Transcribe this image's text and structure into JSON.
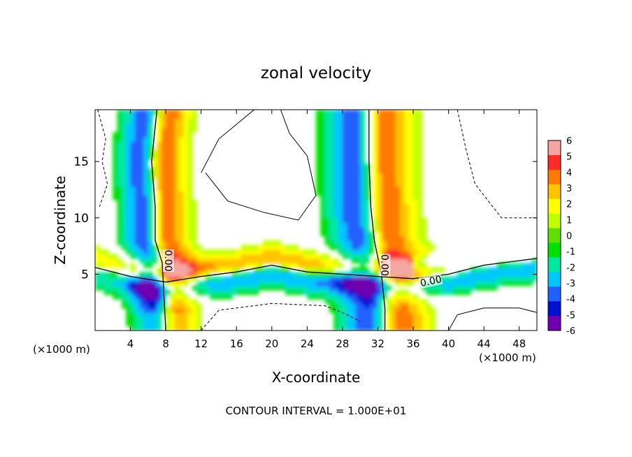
{
  "chart_data": {
    "type": "heatmap",
    "title": "zonal velocity",
    "xlabel": "X-coordinate",
    "ylabel": "Z-coordinate",
    "x_unit_left": "(×1000 m)",
    "x_unit_right": "(×1000 m)",
    "xlim": [
      0,
      50
    ],
    "ylim": [
      0,
      19.6
    ],
    "x_ticks": [
      4,
      8,
      12,
      16,
      20,
      24,
      28,
      32,
      36,
      40,
      44,
      48
    ],
    "y_ticks": [
      5,
      10,
      15
    ],
    "footer": "CONTOUR INTERVAL = 1.000E+01",
    "colorbar": {
      "ticks": [
        6,
        5,
        4,
        3,
        2,
        1,
        0,
        -1,
        -2,
        -3,
        -4,
        -5,
        -6
      ],
      "colors": [
        "#f4a7a0",
        "#ff2a2a",
        "#ff7a00",
        "#ffc400",
        "#ffff00",
        "#bfff00",
        "#60e000",
        "#00e000",
        "#00e8a0",
        "#00c8ff",
        "#2060ff",
        "#0010d0",
        "#7000b0"
      ]
    },
    "contour_labels": [
      {
        "text": "0.00",
        "x": 8.3,
        "z": 6.2,
        "rotate": 90
      },
      {
        "text": "0.00",
        "x": 32.8,
        "z": 5.8,
        "rotate": 90
      },
      {
        "text": "0.00",
        "x": 38.0,
        "z": 4.4,
        "rotate": -12
      }
    ],
    "features": {
      "left_column": [
        {
          "z": 19.6,
          "x": 7.0
        },
        {
          "z": 15,
          "x": 6.4
        },
        {
          "z": 11,
          "x": 6.8
        },
        {
          "z": 8,
          "x": 6.8
        },
        {
          "z": 6,
          "x": 7.6
        },
        {
          "z": 3,
          "x": 7.8
        },
        {
          "z": 0,
          "x": 8.0
        }
      ],
      "right_column": [
        {
          "z": 19.6,
          "x": 31.0
        },
        {
          "z": 15,
          "x": 31.0
        },
        {
          "z": 11,
          "x": 31.2
        },
        {
          "z": 8,
          "x": 31.6
        },
        {
          "z": 5,
          "x": 32.4
        },
        {
          "z": 2,
          "x": 32.8
        },
        {
          "z": 0,
          "x": 32.8
        }
      ],
      "shear_layer": [
        {
          "x": 0,
          "z": 5.6
        },
        {
          "x": 4,
          "z": 4.8
        },
        {
          "x": 8,
          "z": 4.3
        },
        {
          "x": 12,
          "z": 4.8
        },
        {
          "x": 16,
          "z": 5.2
        },
        {
          "x": 20,
          "z": 5.8
        },
        {
          "x": 24,
          "z": 5.2
        },
        {
          "x": 28,
          "z": 5.0
        },
        {
          "x": 32,
          "z": 4.8
        },
        {
          "x": 36,
          "z": 4.6
        },
        {
          "x": 40,
          "z": 5.0
        },
        {
          "x": 44,
          "z": 5.8
        },
        {
          "x": 48,
          "z": 6.2
        },
        {
          "x": 50,
          "z": 6.4
        }
      ]
    }
  }
}
